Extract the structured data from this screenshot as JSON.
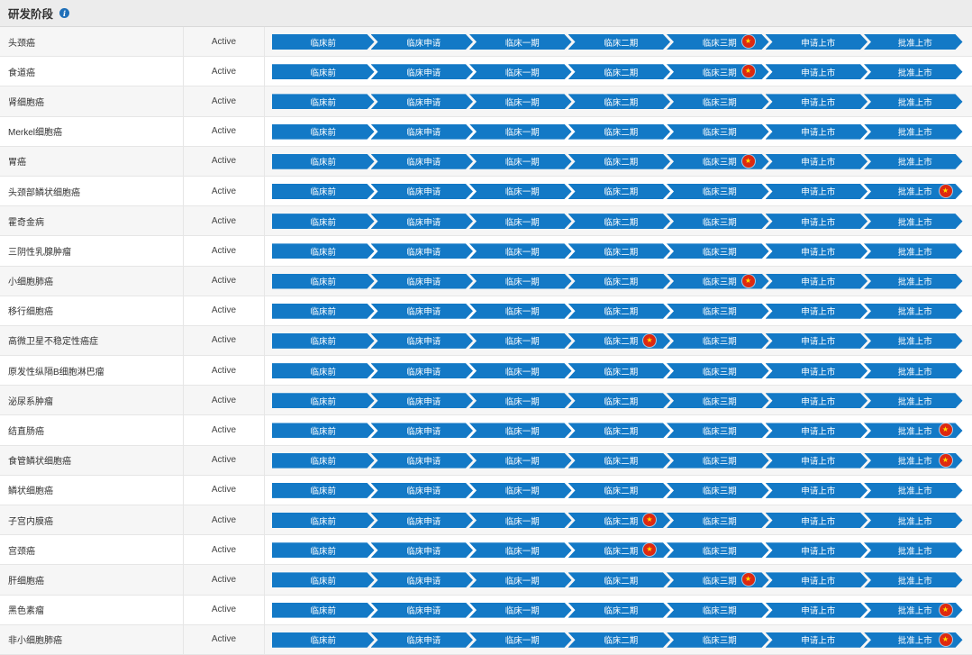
{
  "header": {
    "title": "研发阶段",
    "info_icon": "info-icon"
  },
  "stages": [
    "临床前",
    "临床申请",
    "临床一期",
    "临床二期",
    "临床三期",
    "申请上市",
    "批准上市"
  ],
  "flag_icon": "china-flag-icon",
  "colors": {
    "stage_fill": "#1379c6",
    "flag": "#de2910"
  },
  "rows": [
    {
      "name": "头颈癌",
      "status": "Active",
      "flag_stage": 4
    },
    {
      "name": "食道癌",
      "status": "Active",
      "flag_stage": 4
    },
    {
      "name": "肾细胞癌",
      "status": "Active",
      "flag_stage": null
    },
    {
      "name": "Merkel细胞癌",
      "status": "Active",
      "flag_stage": null
    },
    {
      "name": "胃癌",
      "status": "Active",
      "flag_stage": 4
    },
    {
      "name": "头颈部鳞状细胞癌",
      "status": "Active",
      "flag_stage": 6
    },
    {
      "name": "霍奇金病",
      "status": "Active",
      "flag_stage": null
    },
    {
      "name": "三阴性乳腺肿瘤",
      "status": "Active",
      "flag_stage": null
    },
    {
      "name": "小细胞肺癌",
      "status": "Active",
      "flag_stage": 4
    },
    {
      "name": "移行细胞癌",
      "status": "Active",
      "flag_stage": null
    },
    {
      "name": "高微卫星不稳定性癌症",
      "status": "Active",
      "flag_stage": 3
    },
    {
      "name": "原发性纵隔B细胞淋巴瘤",
      "status": "Active",
      "flag_stage": null
    },
    {
      "name": "泌尿系肿瘤",
      "status": "Active",
      "flag_stage": null
    },
    {
      "name": "结直肠癌",
      "status": "Active",
      "flag_stage": 6
    },
    {
      "name": "食管鳞状细胞癌",
      "status": "Active",
      "flag_stage": 6
    },
    {
      "name": "鳞状细胞癌",
      "status": "Active",
      "flag_stage": null
    },
    {
      "name": "子宫内膜癌",
      "status": "Active",
      "flag_stage": 3
    },
    {
      "name": "宫颈癌",
      "status": "Active",
      "flag_stage": 3
    },
    {
      "name": "肝细胞癌",
      "status": "Active",
      "flag_stage": 4
    },
    {
      "name": "黑色素瘤",
      "status": "Active",
      "flag_stage": 6
    },
    {
      "name": "非小细胞肺癌",
      "status": "Active",
      "flag_stage": 6
    }
  ]
}
